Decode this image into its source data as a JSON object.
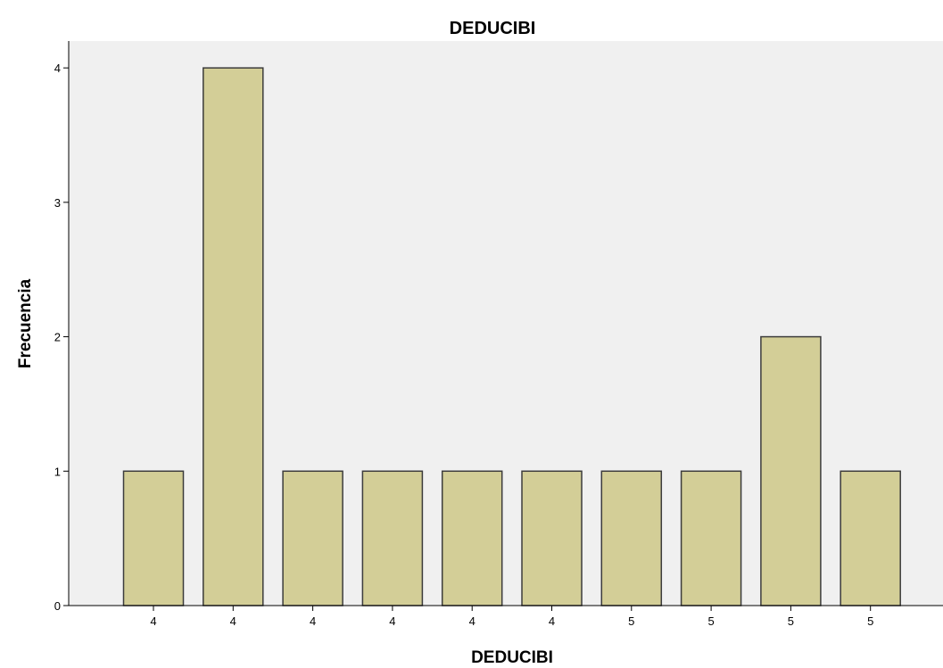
{
  "chart_data": {
    "type": "bar",
    "title": "DEDUCIBI",
    "xlabel": "DEDUCIBI",
    "ylabel": "Frecuencia",
    "categories": [
      "4",
      "4",
      "4",
      "4",
      "4",
      "4",
      "5",
      "5",
      "5",
      "5"
    ],
    "values": [
      1,
      4,
      1,
      1,
      1,
      1,
      1,
      1,
      2,
      1
    ],
    "ylim": [
      0,
      4.2
    ],
    "yticks": [
      "0",
      "1",
      "2",
      "3",
      "4"
    ],
    "grid": false,
    "colors": {
      "plot_background": "#f0f0f0",
      "bar_fill": "#d3ce97",
      "bar_stroke": "#3c3c3c",
      "axis": "#000000"
    }
  }
}
